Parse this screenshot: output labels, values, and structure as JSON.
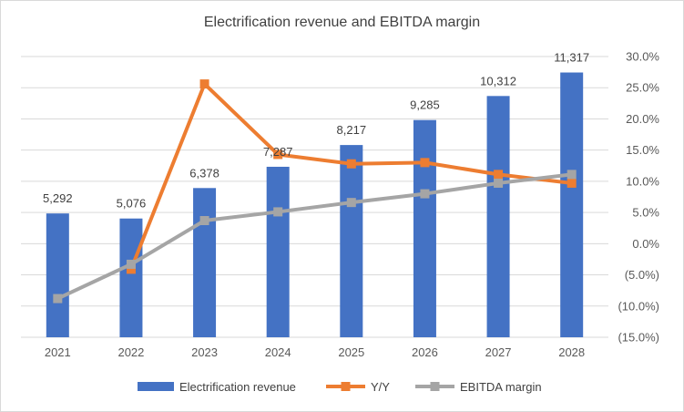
{
  "chart_data": {
    "type": "bar",
    "title": "Electrification revenue and EBITDA margin",
    "categories": [
      "2021",
      "2022",
      "2023",
      "2024",
      "2025",
      "2026",
      "2027",
      "2028"
    ],
    "series": [
      {
        "name": "Electrification revenue",
        "type": "bar",
        "axis": "left",
        "color": "#4472c4",
        "values": [
          5292,
          5076,
          6378,
          7287,
          8217,
          9285,
          10312,
          11317
        ],
        "labels": [
          "5,292",
          "5,076",
          "6,378",
          "7,287",
          "8,217",
          "9,285",
          "10,312",
          "11,317"
        ]
      },
      {
        "name": "Y/Y",
        "type": "line",
        "axis": "right",
        "color": "#ed7d31",
        "values": [
          null,
          -4.1,
          25.6,
          14.3,
          12.8,
          13.0,
          11.1,
          9.7
        ]
      },
      {
        "name": "EBITDA margin",
        "type": "line",
        "axis": "right",
        "color": "#a5a5a5",
        "values": [
          -8.8,
          -3.3,
          3.7,
          5.1,
          6.6,
          8.0,
          9.7,
          11.1
        ]
      }
    ],
    "y_left": {
      "min": 0,
      "max": 12000
    },
    "y_right": {
      "min": -15,
      "max": 30,
      "step": 5,
      "tick_labels": [
        "(15.0%)",
        "(10.0%)",
        "(5.0%)",
        "0.0%",
        "5.0%",
        "10.0%",
        "15.0%",
        "20.0%",
        "25.0%",
        "30.0%"
      ]
    },
    "grid": true,
    "legend": "bottom"
  }
}
